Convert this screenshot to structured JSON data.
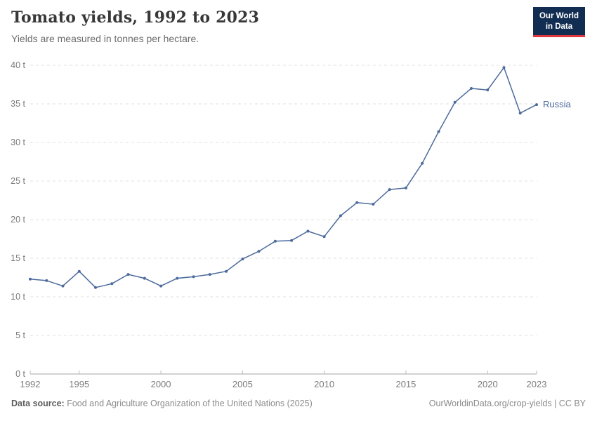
{
  "header": {
    "title": "Tomato yields, 1992 to 2023",
    "subtitle": "Yields are measured in tonnes per hectare.",
    "logo": {
      "line1": "Our World",
      "line2": "in Data",
      "bg_color": "#112d51",
      "accent_color": "#e0373f"
    }
  },
  "chart_data": {
    "type": "line",
    "title": "Tomato yields, 1992 to 2023",
    "ylabel": "tonnes per hectare",
    "xlim": [
      1992,
      2023
    ],
    "ylim": [
      0,
      40
    ],
    "grid": "horizontal-dashed",
    "legend_position": "end-of-line-label",
    "x": [
      1992,
      1993,
      1994,
      1995,
      1996,
      1997,
      1998,
      1999,
      2000,
      2001,
      2002,
      2003,
      2004,
      2005,
      2006,
      2007,
      2008,
      2009,
      2010,
      2011,
      2012,
      2013,
      2014,
      2015,
      2016,
      2017,
      2018,
      2019,
      2020,
      2021,
      2022,
      2023
    ],
    "series": [
      {
        "name": "Russia",
        "color": "#4c6a9c",
        "values": [
          12.3,
          12.1,
          11.4,
          13.3,
          11.2,
          11.7,
          12.9,
          12.4,
          11.4,
          12.4,
          12.6,
          12.9,
          13.3,
          14.9,
          15.9,
          17.2,
          17.3,
          18.5,
          17.8,
          20.5,
          22.2,
          22.0,
          23.9,
          24.1,
          27.3,
          31.4,
          35.2,
          37.0,
          36.8,
          39.7,
          33.8,
          34.9
        ]
      }
    ],
    "y_ticks": [
      0,
      5,
      10,
      15,
      20,
      25,
      30,
      35,
      40
    ],
    "y_tick_labels": [
      "0 t",
      "5 t",
      "10 t",
      "15 t",
      "20 t",
      "25 t",
      "30 t",
      "35 t",
      "40 t"
    ],
    "x_ticks": [
      1992,
      1995,
      2000,
      2005,
      2010,
      2015,
      2020,
      2023
    ],
    "x_tick_labels": [
      "1992",
      "1995",
      "2000",
      "2005",
      "2010",
      "2015",
      "2020",
      "2023"
    ],
    "colors": {
      "grid": "#e2e2e2",
      "axis": "#a5a5a5",
      "tick": "#bcbcbc",
      "tick_label": "#7b7b7b"
    }
  },
  "footer": {
    "source_label": "Data source:",
    "source_text": "Food and Agriculture Organization of the United Nations (2025)",
    "credit": "OurWorldinData.org/crop-yields | CC BY"
  }
}
